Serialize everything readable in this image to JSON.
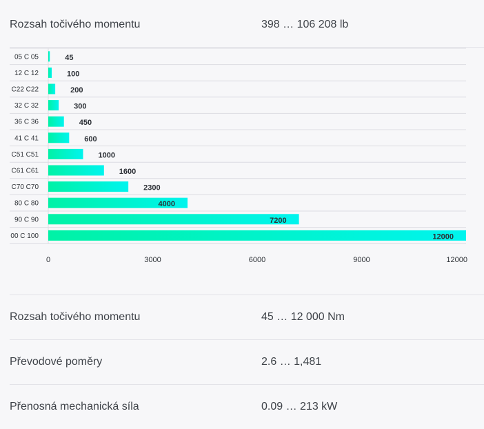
{
  "specs_top": [
    {
      "label": "Rozsah točivého momentu",
      "value": "398 … 106 208 lb"
    }
  ],
  "chart_data": {
    "type": "bar",
    "orientation": "horizontal",
    "categories": [
      "05 C 05",
      "12 C 12",
      "C22 C22",
      "32 C 32",
      "36 C 36",
      "41 C 41",
      "C51 C51",
      "C61 C61",
      "C70 C70",
      "80 C 80",
      "90 C 90",
      "00 C 100"
    ],
    "values": [
      45,
      100,
      200,
      300,
      450,
      600,
      1000,
      1600,
      2300,
      4000,
      7200,
      12000
    ],
    "xlim": [
      0,
      12000
    ],
    "xticks": [
      "0",
      "3000",
      "6000",
      "9000",
      "12000"
    ],
    "grid": true,
    "colors": {
      "bar_start": "#00f2a6",
      "bar_end": "#00f4ee",
      "grid": "#dcdce2",
      "label_inside": "#1f2a33"
    }
  },
  "specs_bottom": [
    {
      "label": "Rozsah točivého momentu",
      "value": "45 … 12 000 Nm"
    },
    {
      "label": "Převodové poměry",
      "value": "2.6 … 1,481"
    },
    {
      "label": "Přenosná mechanická síla",
      "value": "0.09 … 213 kW"
    }
  ]
}
